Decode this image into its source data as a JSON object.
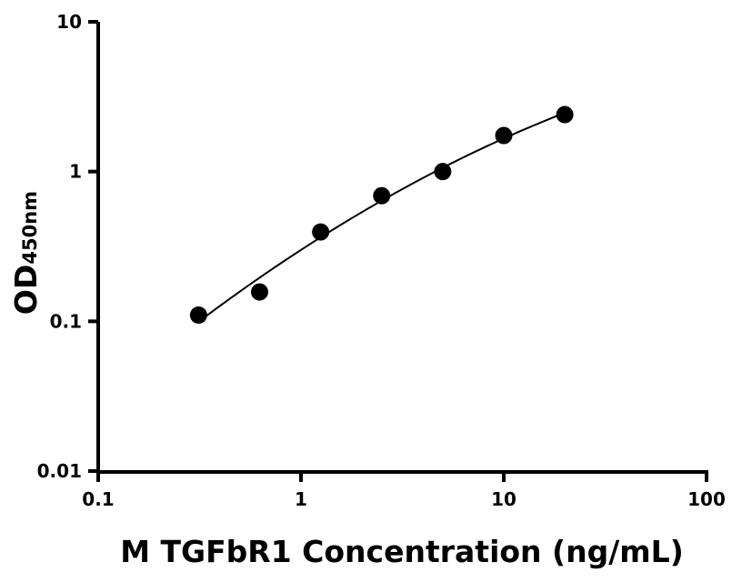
{
  "chart_data": {
    "type": "scatter",
    "xlabel": "M TGFbR1 Concentration (ng/mL)",
    "ylabel_main": "OD",
    "ylabel_sub": "450nm",
    "xscale": "log",
    "yscale": "log",
    "xlim": [
      0.1,
      100
    ],
    "ylim": [
      0.01,
      10
    ],
    "x_ticks": [
      0.1,
      1,
      10,
      100
    ],
    "x_tick_labels": [
      "0.1",
      "1",
      "10",
      "100"
    ],
    "y_ticks": [
      0.01,
      0.1,
      1,
      10
    ],
    "y_tick_labels": [
      "0.01",
      "0.1",
      "1",
      "10"
    ],
    "grid": false,
    "series": [
      {
        "x": [
          0.3125,
          0.625,
          1.25,
          2.5,
          5,
          10,
          20
        ],
        "y": [
          0.11,
          0.157,
          0.395,
          0.69,
          1.0,
          1.74,
          2.4
        ],
        "fit_curve": true,
        "color": "#000000"
      }
    ]
  }
}
